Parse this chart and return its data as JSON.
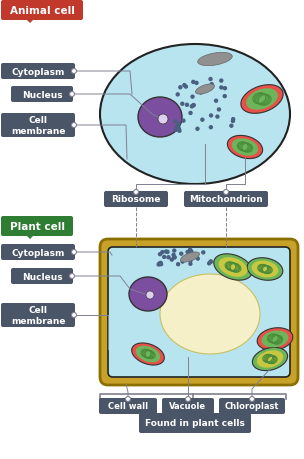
{
  "fig_width": 3.04,
  "fig_height": 4.6,
  "bg_color": "#ffffff",
  "animal_label_bg": "#c0392b",
  "plant_label_bg": "#2e7d32",
  "label_text_color": "#ffffff",
  "label_font_size": 7.5,
  "cell_label_bg": "#4a5568",
  "cell_label_text": "#ffffff",
  "cell_label_font_size": 6.5,
  "bottom_label_bg": "#4a5568",
  "bottom_label_text": "#ffffff",
  "animal_cell_fill": "#b8e4f0",
  "animal_cell_edge": "#222222",
  "nucleus_fill_animal": "#7b4ea0",
  "nucleus_edge": "#222222",
  "plant_cell_fill": "#b8e4f0",
  "plant_cell_edge": "#222222",
  "plant_cell_wall_fill": "#c8a228",
  "plant_cell_wall_edge": "#8b7000",
  "vacuole_fill": "#f5f0c8",
  "nucleus_fill_plant": "#7b4ea0",
  "mito_outer": "#e8504a",
  "mito_inner": "#6db55a",
  "mito_stripe": "#4a8c3a",
  "chloroplast_outer": "#6db55a",
  "chloroplast_inner": "#c8c840",
  "chloroplast_stripe": "#4a8c3a",
  "ribosome_dot_color": "#4a6080",
  "ribosome_cluster_color": "#808090",
  "line_color": "#606080",
  "connector_color": "#808090",
  "animal_title": "Animal cell",
  "plant_title": "Plant cell",
  "labels_left": [
    "Cytoplasm",
    "Nucleus",
    "Cell\nmembrane"
  ],
  "labels_bottom_animal": [
    "Ribosome",
    "Mitochondrion"
  ],
  "labels_bottom_plant": [
    "Cell wall",
    "Vacuole",
    "Chloroplast"
  ],
  "found_label": "Found in plant cells"
}
